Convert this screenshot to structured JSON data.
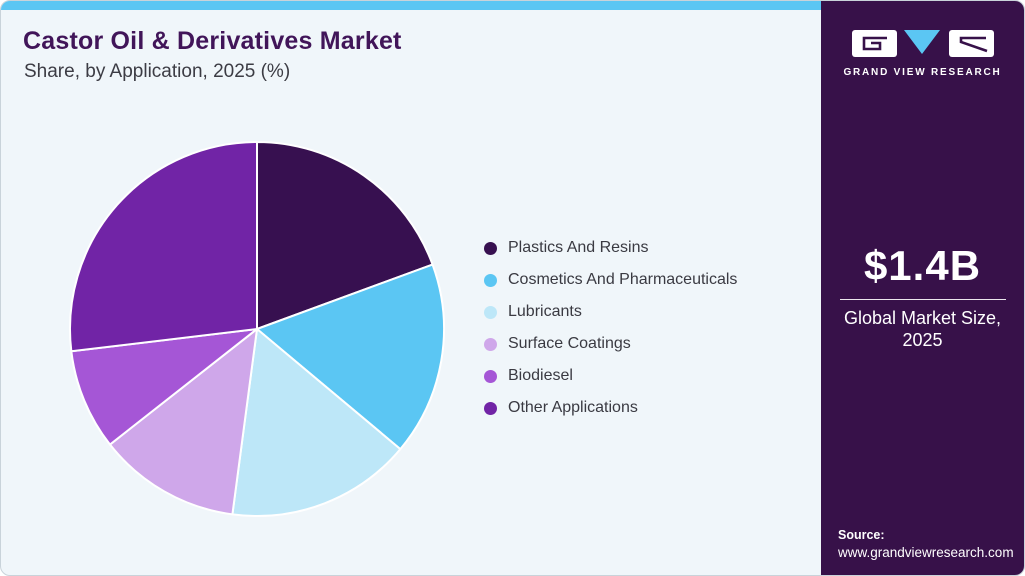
{
  "header": {
    "title": "Castor Oil & Derivatives Market",
    "subtitle": "Share, by Application, 2025 (%)"
  },
  "chart_data": {
    "type": "pie",
    "title": "Castor Oil & Derivatives Market Share, by Application, 2025 (%)",
    "unit": "%",
    "labels": [
      "Plastics And Resins",
      "Cosmetics And Pharmaceuticals",
      "Lubricants",
      "Surface Coatings",
      "Biodiesel",
      "Other Applications"
    ],
    "values": [
      19.4,
      16.7,
      16.0,
      12.3,
      8.7,
      26.9
    ],
    "colors": [
      "#371050",
      "#5BC6F3",
      "#BDE7F8",
      "#CFA7EA",
      "#A556D6",
      "#7124A6"
    ],
    "start_angle_deg": -90,
    "direction": "clockwise",
    "legend_position": "right",
    "data_labels_visible": false
  },
  "sidebar": {
    "logo_text": "GRAND VIEW RESEARCH",
    "market_size_value": "$1.4B",
    "market_size_caption": "Global Market Size, 2025",
    "source_label": "Source:",
    "source_url": "www.grandviewresearch.com"
  },
  "colors": {
    "accent_blue": "#5BC6F3",
    "card_background": "#F0F6FA",
    "sidebar_background": "#371149",
    "title_color": "#411559",
    "text_color": "#3C3C44"
  }
}
